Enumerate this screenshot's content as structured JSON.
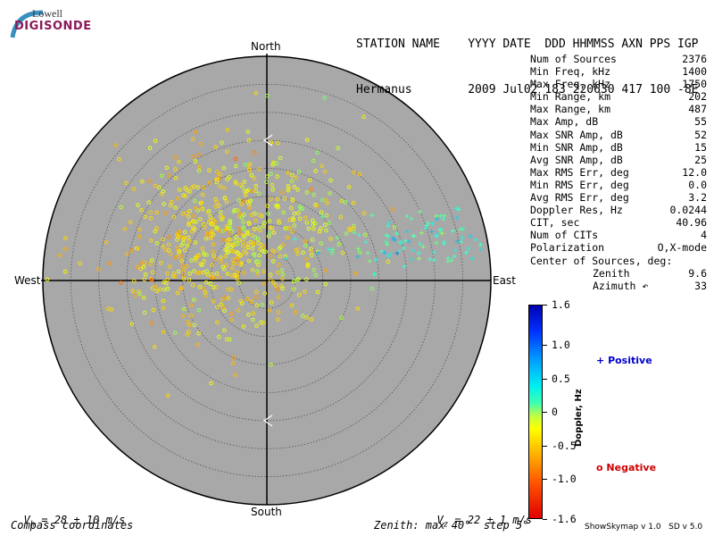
{
  "logo": {
    "top": "Lowell",
    "bottom": "DIGISONDE"
  },
  "header": {
    "line1": "STATION NAME    YYYY DATE  DDD HHMMSS AXN PPS IGP",
    "line2": "Hermanus        2009 Jul02 183 220630 417 100 -8E"
  },
  "stats": [
    {
      "label": "Num of Sources",
      "value": "2376"
    },
    {
      "label": "Min Freq, kHz",
      "value": "1400"
    },
    {
      "label": "Max Freq, kHz",
      "value": "1750"
    },
    {
      "label": "Min Range, km",
      "value": "202"
    },
    {
      "label": "Max Range, km",
      "value": "487"
    },
    {
      "label": "Max Amp, dB",
      "value": "55"
    },
    {
      "label": "Max SNR Amp, dB",
      "value": "52"
    },
    {
      "label": "Min SNR Amp, dB",
      "value": "15"
    },
    {
      "label": "Avg SNR Amp, dB",
      "value": "25"
    },
    {
      "label": "Max RMS Err, deg",
      "value": "12.0"
    },
    {
      "label": "Min RMS Err, deg",
      "value": "0.0"
    },
    {
      "label": "Avg RMS Err, deg",
      "value": "3.2"
    },
    {
      "label": "Doppler Res, Hz",
      "value": "0.0244"
    },
    {
      "label": "CIT, sec",
      "value": "40.96"
    },
    {
      "label": "Num of CITs",
      "value": "4"
    },
    {
      "label": "Polarization",
      "value": "O,X-mode"
    },
    {
      "label": "Center of Sources, deg:",
      "value": ""
    }
  ],
  "center": {
    "zenith_label": "Zenith",
    "zenith_value": "9.6",
    "azimuth_label": "Azimuth ↶",
    "azimuth_value": "33"
  },
  "directions": {
    "north": "North",
    "south": "South",
    "east": "East",
    "west": "West"
  },
  "footer": {
    "vh_sym": "V",
    "vh_sub": "h",
    "vh_text": " = 28 ± 10 m/s",
    "vz_sym": "V",
    "vz_sub": "z",
    "vz_text": " = 22 ± 1 m/s",
    "coords": "Compass coordinates",
    "zenith": "Zenith: max 40°  step 5°",
    "version": "ShowSkymap v 1.0   SD v 5.0"
  },
  "colorbar": {
    "title": "Doppler, Hz",
    "ticks": [
      "1.6",
      "1.0",
      "0.5",
      "0",
      "-0.5",
      "-1.0",
      "-1.6"
    ],
    "tick_values": [
      1.6,
      1.0,
      0.5,
      0,
      -0.5,
      -1.0,
      -1.6
    ],
    "range": [
      -1.6,
      1.6
    ]
  },
  "legend": {
    "positive": "Positive",
    "negative": "Negative",
    "positive_symbol": "+",
    "negative_symbol": "o"
  },
  "colors": {
    "plot_bg": "#a8a8a8",
    "positive": "#0000cc",
    "negative": "#cc0000",
    "cyan": "#40ffd0",
    "yellow": "#e8ff30",
    "green": "#a0ff40",
    "orange": "#ffb020"
  },
  "chart_data": {
    "type": "scatter",
    "projection": "polar skymap, compass coordinates",
    "zenith_max_deg": 40,
    "zenith_step_deg": 5,
    "clusters": [
      {
        "sign": "negative",
        "center_zenith_deg": 12,
        "center_azimuth_deg": 300,
        "doppler_hz": -0.4,
        "count": 1400
      },
      {
        "sign": "negative",
        "center_zenith_deg": 10,
        "center_azimuth_deg": 20,
        "doppler_hz": -0.2,
        "count": 600
      },
      {
        "sign": "positive",
        "center_zenith_deg": 28,
        "center_azimuth_deg": 75,
        "doppler_hz": 0.5,
        "count": 300
      }
    ],
    "markers": [
      {
        "zenith_deg": 25,
        "azimuth_deg": 0
      },
      {
        "zenith_deg": 25,
        "azimuth_deg": 180
      }
    ]
  }
}
